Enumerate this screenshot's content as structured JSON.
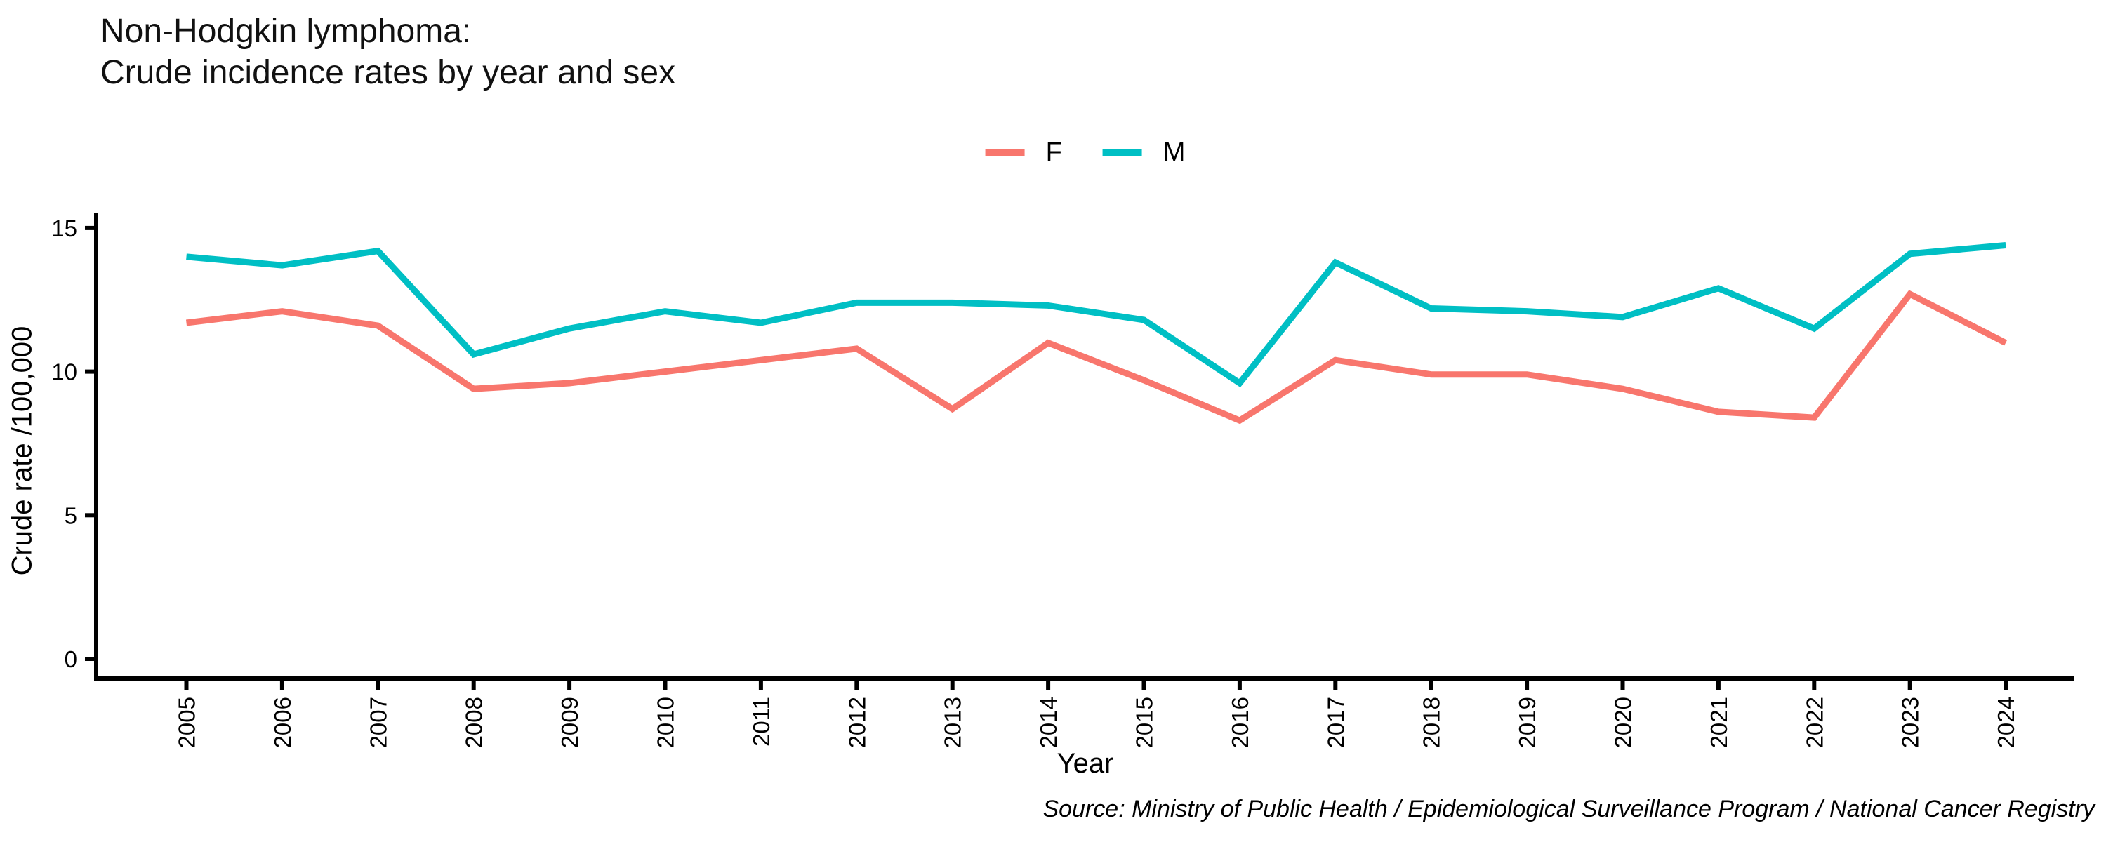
{
  "title": {
    "line1": "Non-Hodgkin lymphoma:",
    "line2": "Crude incidence rates by year and sex"
  },
  "legend": {
    "items": [
      {
        "label": "F",
        "color": "#F8766D"
      },
      {
        "label": "M",
        "color": "#00BFC4"
      }
    ]
  },
  "axes": {
    "x": {
      "title": "Year"
    },
    "y": {
      "title": "Crude rate /100,000",
      "ticks": [
        0,
        5,
        10,
        15
      ]
    }
  },
  "source": "Source: Ministry of Public Health / Epidemiological Surveillance Program / National Cancer Registry",
  "chart_data": {
    "type": "line",
    "title": "Non-Hodgkin lymphoma: Crude incidence rates by year and sex",
    "xlabel": "Year",
    "ylabel": "Crude rate /100,000",
    "x": [
      2005,
      2006,
      2007,
      2008,
      2009,
      2010,
      2011,
      2012,
      2013,
      2014,
      2015,
      2016,
      2017,
      2018,
      2019,
      2020,
      2021,
      2022,
      2023,
      2024
    ],
    "series": [
      {
        "name": "F",
        "color": "#F8766D",
        "values": [
          11.7,
          12.1,
          11.6,
          9.4,
          9.6,
          10.0,
          10.4,
          10.8,
          8.7,
          11.0,
          9.7,
          8.3,
          10.4,
          9.9,
          9.9,
          9.4,
          8.6,
          8.4,
          12.7,
          11.0
        ]
      },
      {
        "name": "M",
        "color": "#00BFC4",
        "values": [
          14.0,
          13.7,
          14.2,
          10.6,
          11.5,
          12.1,
          11.7,
          12.4,
          12.4,
          12.3,
          11.8,
          9.6,
          13.8,
          12.2,
          12.1,
          11.9,
          12.9,
          11.5,
          14.1,
          14.4
        ]
      }
    ],
    "ylim": [
      0,
      15
    ],
    "grid": false,
    "legend_position": "top-center"
  }
}
